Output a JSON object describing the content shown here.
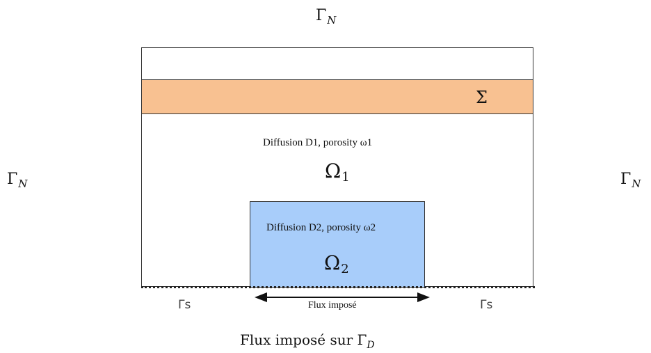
{
  "labels": {
    "gamma_n_top": {
      "base": "Γ",
      "sub": "N"
    },
    "gamma_n_left": {
      "base": "Γ",
      "sub": "N"
    },
    "gamma_n_right": {
      "base": "Γ",
      "sub": "N"
    },
    "sigma": "Σ",
    "omega1": {
      "base": "Ω",
      "sub": "1"
    },
    "omega2": {
      "base": "Ω",
      "sub": "2"
    },
    "region1_text": "Diffusion D1, porosity ω1",
    "region2_text": "Diffusion D2, porosity ω2",
    "gamma_s_left": "Γs",
    "gamma_s_right": "Γs",
    "flux_arrow_label": "Flux imposé",
    "bottom_caption": {
      "text": "Flux imposé sur Γ",
      "sub": "D"
    }
  },
  "colors": {
    "sigma_band": "#f8c191",
    "omega2_region": "#a8cdfa"
  }
}
